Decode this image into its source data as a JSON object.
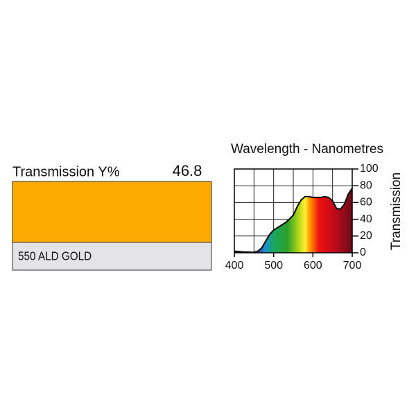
{
  "swatch": {
    "label": "Transmission Y%",
    "value": 46.8,
    "color": "#ffaa00",
    "name": "550 ALD GOLD"
  },
  "chart_data": {
    "type": "area",
    "title": "Wavelength - Nanometres",
    "y_label": "Transmission",
    "x": [
      400,
      420,
      450,
      460,
      470,
      480,
      490,
      500,
      510,
      520,
      530,
      540,
      550,
      560,
      570,
      580,
      590,
      600,
      610,
      620,
      630,
      640,
      650,
      660,
      670,
      680,
      690,
      700
    ],
    "values": [
      2,
      1,
      0.5,
      2,
      6,
      14,
      22,
      27,
      30,
      33,
      36,
      40,
      45,
      55,
      63,
      67,
      67,
      66,
      66,
      66,
      67,
      66,
      62,
      53,
      52,
      58,
      70,
      77
    ],
    "xlim": [
      400,
      700
    ],
    "ylim": [
      0,
      100
    ],
    "xticks": [
      400,
      500,
      600,
      700
    ],
    "yticks": [
      0,
      20,
      40,
      60,
      80,
      100
    ],
    "x_minor_grid": [
      450,
      550,
      650
    ],
    "grid": true
  }
}
